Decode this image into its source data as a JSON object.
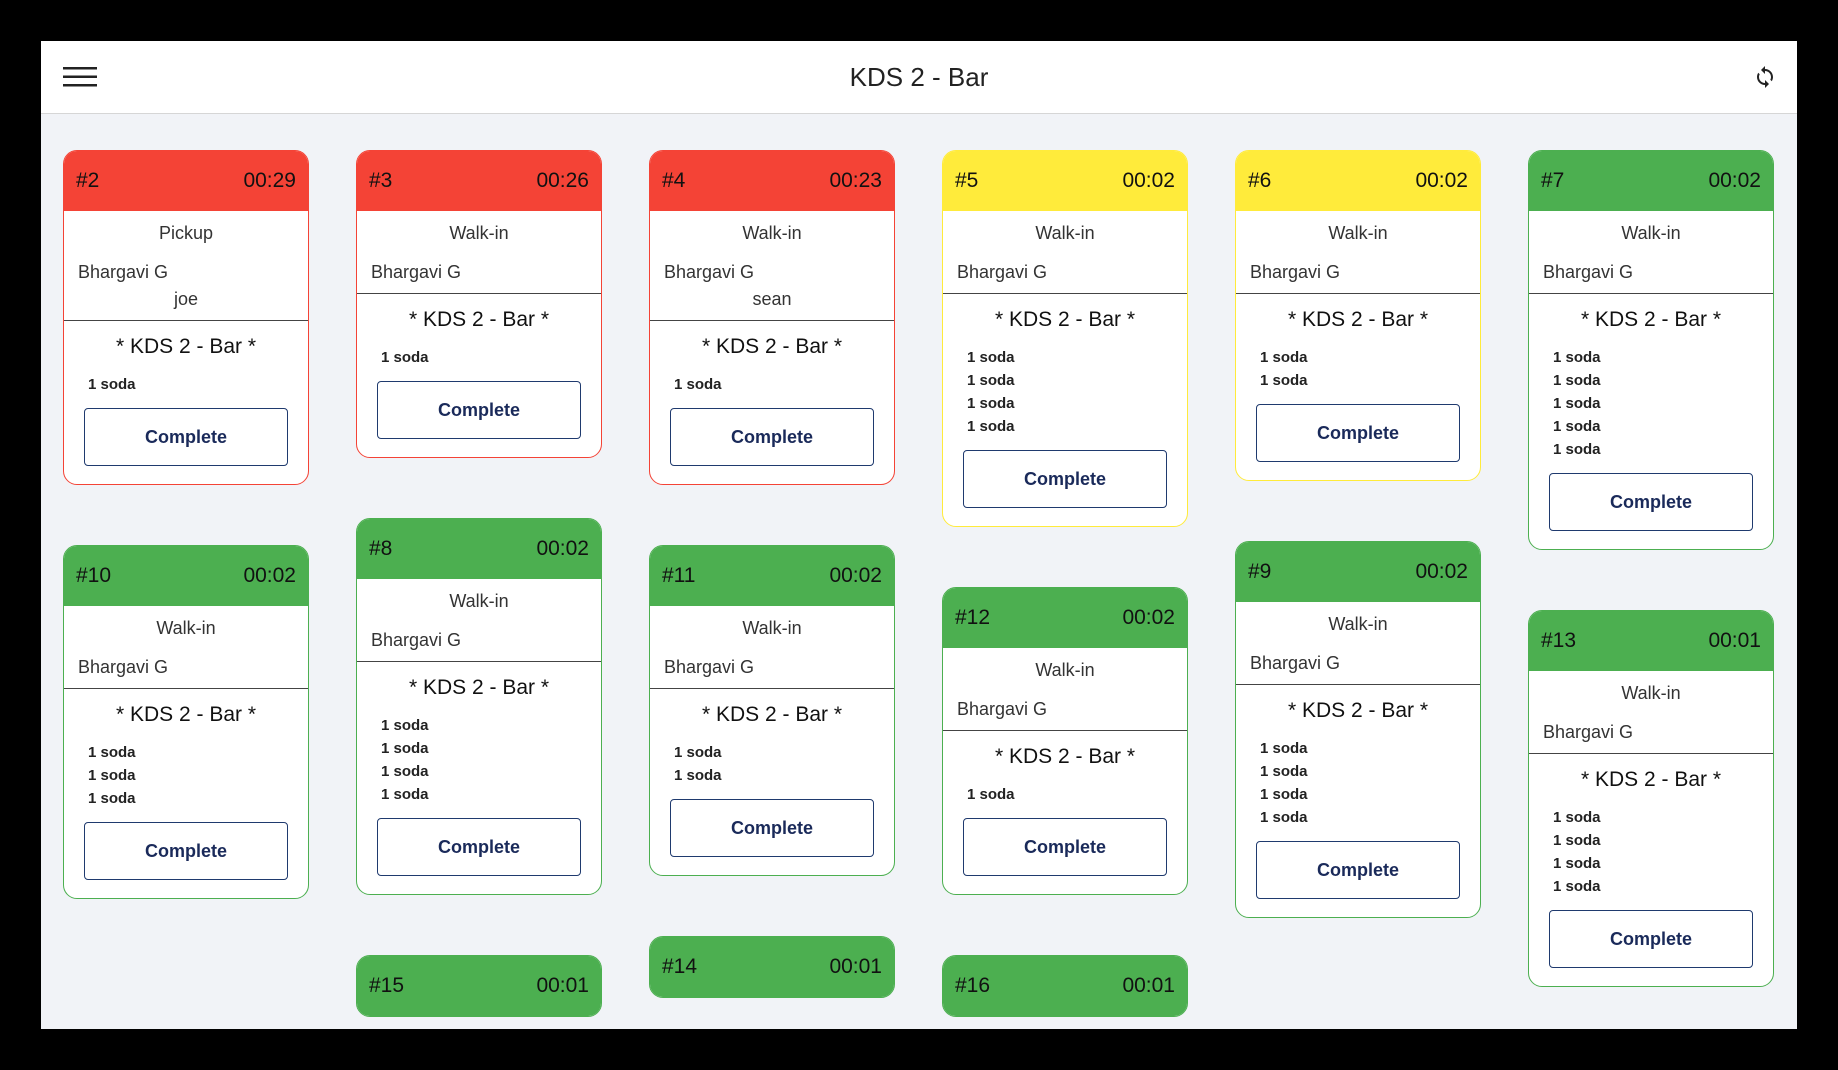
{
  "header": {
    "title": "KDS 2 - Bar"
  },
  "columns": [
    [
      {
        "number": "#2",
        "timer": "00:29",
        "color": "#f44336",
        "order_type": "Pickup",
        "server": "Bhargavi G",
        "customer": "joe",
        "station": "* KDS 2 - Bar *",
        "items": [
          "1 soda"
        ],
        "button": "Complete"
      },
      {
        "number": "#10",
        "timer": "00:02",
        "color": "#4caf50",
        "order_type": "Walk-in",
        "server": "Bhargavi G",
        "station": "* KDS 2 - Bar *",
        "items": [
          "1 soda",
          "1 soda",
          "1 soda"
        ],
        "button": "Complete"
      }
    ],
    [
      {
        "number": "#3",
        "timer": "00:26",
        "color": "#f44336",
        "order_type": "Walk-in",
        "server": "Bhargavi G",
        "station": "* KDS 2 - Bar *",
        "items": [
          "1 soda"
        ],
        "button": "Complete"
      },
      {
        "number": "#8",
        "timer": "00:02",
        "color": "#4caf50",
        "order_type": "Walk-in",
        "server": "Bhargavi G",
        "station": "* KDS 2 - Bar *",
        "items": [
          "1 soda",
          "1 soda",
          "1 soda",
          "1 soda"
        ],
        "button": "Complete"
      },
      {
        "number": "#15",
        "timer": "00:01",
        "color": "#4caf50"
      }
    ],
    [
      {
        "number": "#4",
        "timer": "00:23",
        "color": "#f44336",
        "order_type": "Walk-in",
        "server": "Bhargavi G",
        "customer": "sean",
        "station": "* KDS 2 - Bar *",
        "items": [
          "1 soda"
        ],
        "button": "Complete"
      },
      {
        "number": "#11",
        "timer": "00:02",
        "color": "#4caf50",
        "order_type": "Walk-in",
        "server": "Bhargavi G",
        "station": "* KDS 2 - Bar *",
        "items": [
          "1 soda",
          "1 soda"
        ],
        "button": "Complete"
      },
      {
        "number": "#14",
        "timer": "00:01",
        "color": "#4caf50"
      }
    ],
    [
      {
        "number": "#5",
        "timer": "00:02",
        "color": "#ffeb3b",
        "order_type": "Walk-in",
        "server": "Bhargavi G",
        "station": "* KDS 2 - Bar *",
        "items": [
          "1 soda",
          "1 soda",
          "1 soda",
          "1 soda"
        ],
        "button": "Complete"
      },
      {
        "number": "#12",
        "timer": "00:02",
        "color": "#4caf50",
        "order_type": "Walk-in",
        "server": "Bhargavi G",
        "station": "* KDS 2 - Bar *",
        "items": [
          "1 soda"
        ],
        "button": "Complete"
      },
      {
        "number": "#16",
        "timer": "00:01",
        "color": "#4caf50"
      }
    ],
    [
      {
        "number": "#6",
        "timer": "00:02",
        "color": "#ffeb3b",
        "order_type": "Walk-in",
        "server": "Bhargavi G",
        "station": "* KDS 2 - Bar *",
        "items": [
          "1 soda",
          "1 soda"
        ],
        "button": "Complete"
      },
      {
        "number": "#9",
        "timer": "00:02",
        "color": "#4caf50",
        "order_type": "Walk-in",
        "server": "Bhargavi G",
        "station": "* KDS 2 - Bar *",
        "items": [
          "1 soda",
          "1 soda",
          "1 soda",
          "1 soda"
        ],
        "button": "Complete"
      }
    ],
    [
      {
        "number": "#7",
        "timer": "00:02",
        "color": "#4caf50",
        "order_type": "Walk-in",
        "server": "Bhargavi G",
        "station": "* KDS 2 - Bar *",
        "items": [
          "1 soda",
          "1 soda",
          "1 soda",
          "1 soda",
          "1 soda"
        ],
        "button": "Complete"
      },
      {
        "number": "#13",
        "timer": "00:01",
        "color": "#4caf50",
        "order_type": "Walk-in",
        "server": "Bhargavi G",
        "station": "* KDS 2 - Bar *",
        "items": [
          "1 soda",
          "1 soda",
          "1 soda",
          "1 soda"
        ],
        "button": "Complete"
      }
    ]
  ]
}
